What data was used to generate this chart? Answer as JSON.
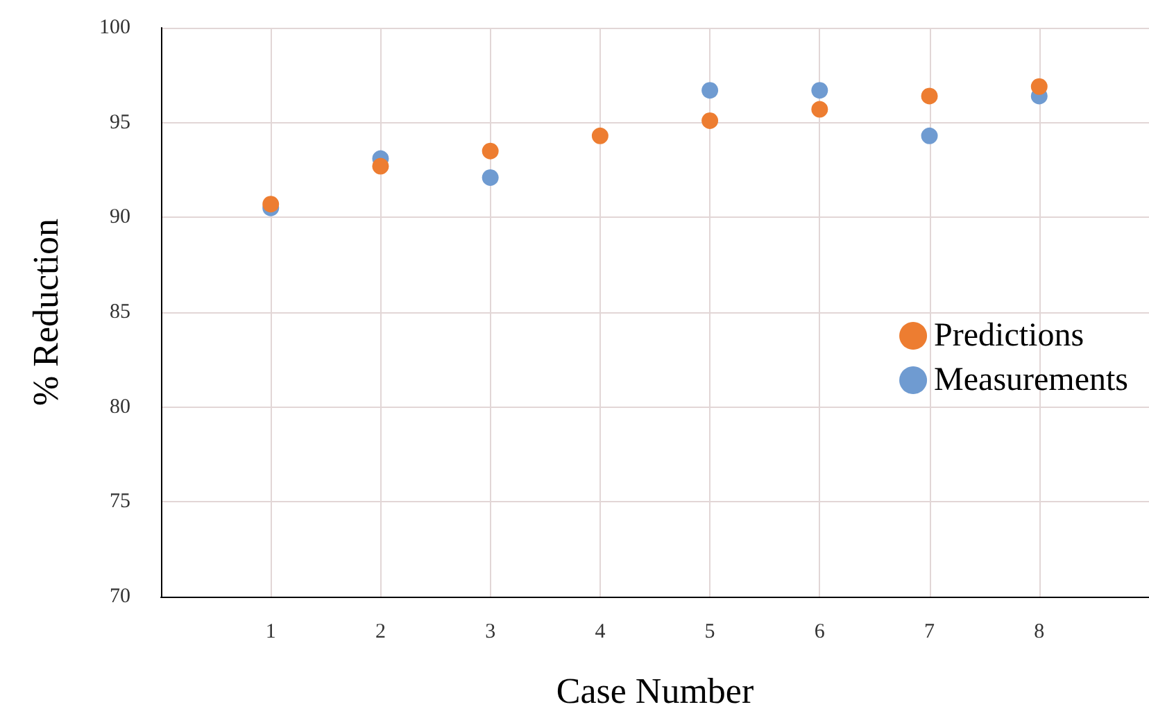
{
  "chart_data": {
    "type": "scatter",
    "xlabel": "Case Number",
    "ylabel": "% Reduction",
    "x": [
      1,
      2,
      3,
      4,
      5,
      6,
      7,
      8
    ],
    "series": [
      {
        "name": "Predictions",
        "color": "#ed7d31",
        "values": [
          90.7,
          92.7,
          93.5,
          94.3,
          95.1,
          95.7,
          96.4,
          96.9
        ]
      },
      {
        "name": "Measurements",
        "color": "#6f9bd1",
        "values": [
          90.5,
          93.1,
          92.1,
          null,
          96.7,
          96.7,
          94.3,
          96.4
        ]
      }
    ],
    "xlim": [
      0,
      9
    ],
    "xticks": [
      1,
      2,
      3,
      4,
      5,
      6,
      7,
      8
    ],
    "ylim": [
      70,
      100
    ],
    "yticks": [
      70,
      75,
      80,
      85,
      90,
      95,
      100
    ],
    "grid": true,
    "legend": "right",
    "marker": "circle"
  }
}
